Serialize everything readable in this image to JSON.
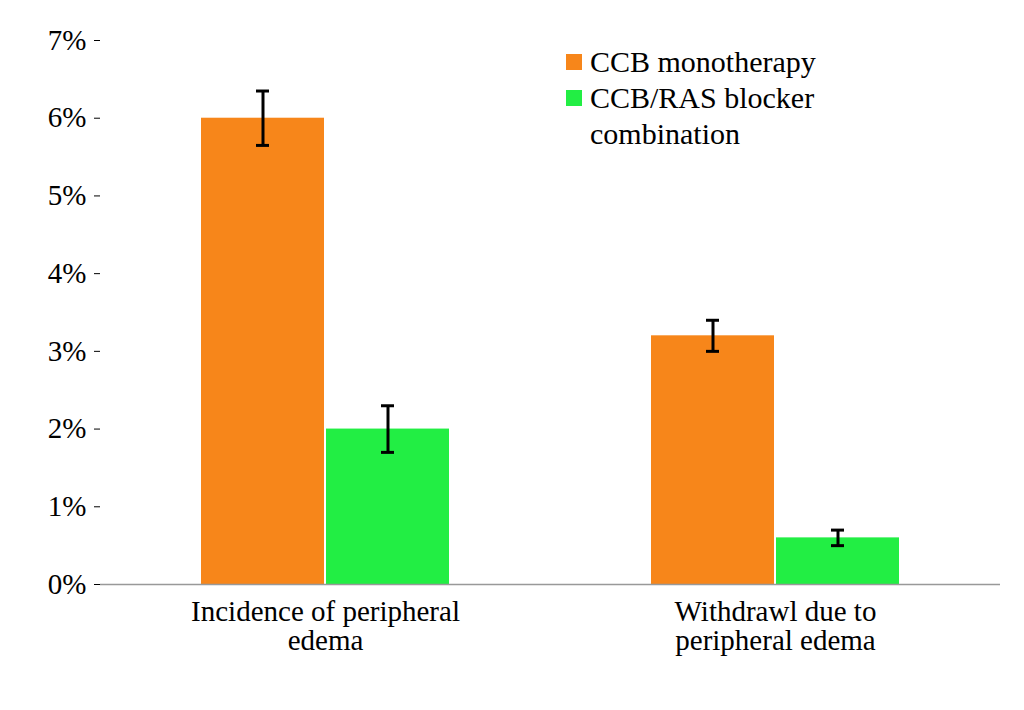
{
  "chart_data": {
    "type": "bar",
    "categories": [
      "Incidence of peripheral edema",
      "Withdrawl due to peripheral edema"
    ],
    "series": [
      {
        "name": "CCB monotherapy",
        "color": "#f7861a",
        "values": [
          6.0,
          3.2
        ],
        "error_low": [
          5.65,
          3.0
        ],
        "error_high": [
          6.35,
          3.4
        ]
      },
      {
        "name": "CCB/RAS blocker combination",
        "color": "#22ee44",
        "values": [
          2.0,
          0.6
        ],
        "error_low": [
          1.7,
          0.5
        ],
        "error_high": [
          2.3,
          0.7
        ]
      }
    ],
    "ylim": [
      0,
      7
    ],
    "yticks": [
      {
        "value": 0,
        "label": "0%"
      },
      {
        "value": 1,
        "label": "1%"
      },
      {
        "value": 2,
        "label": "2%"
      },
      {
        "value": 3,
        "label": "3%"
      },
      {
        "value": 4,
        "label": "4%"
      },
      {
        "value": 5,
        "label": "5%"
      },
      {
        "value": 6,
        "label": "6%"
      },
      {
        "value": 7,
        "label": "7%"
      }
    ],
    "legend": "top-right",
    "grid": false
  }
}
